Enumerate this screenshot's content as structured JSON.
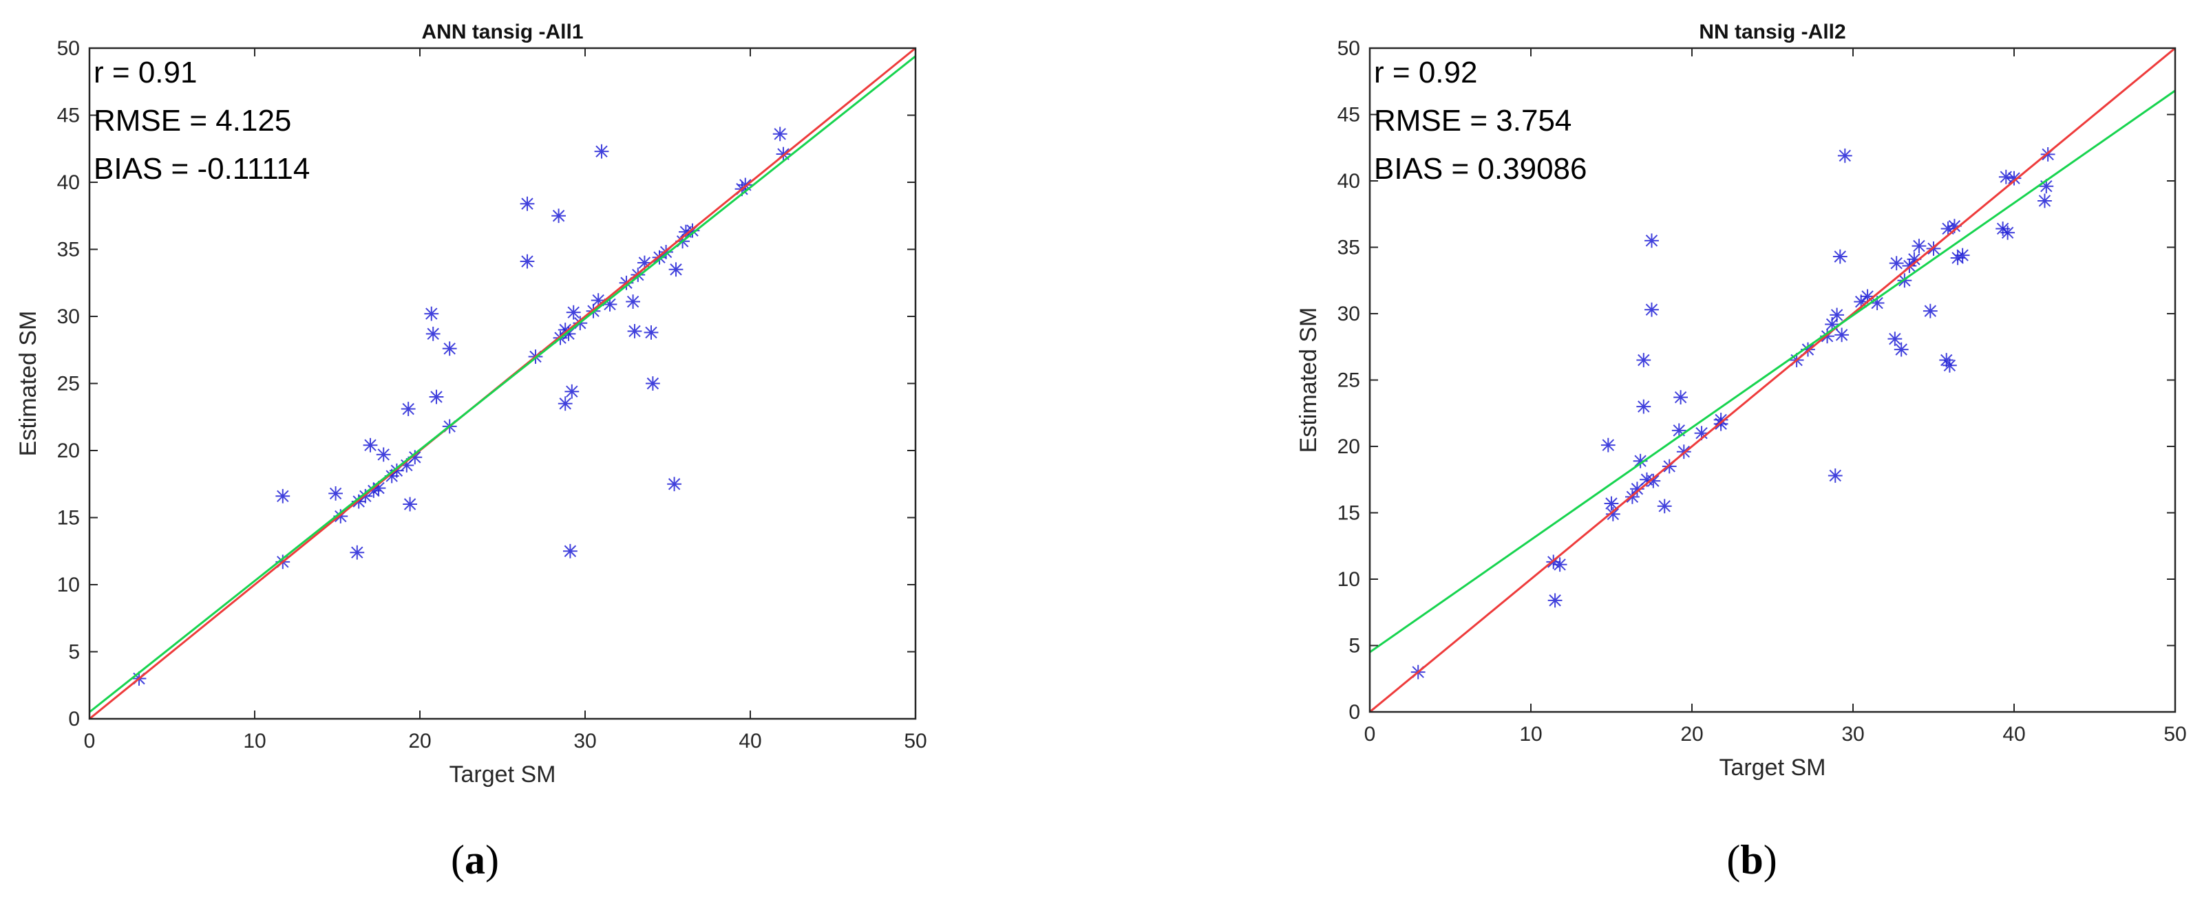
{
  "figure": {
    "panels": [
      {
        "letter": "a",
        "caption_open": "(",
        "caption_close": ")"
      },
      {
        "letter": "b",
        "caption_open": "(",
        "caption_close": ")"
      }
    ]
  },
  "colors": {
    "scatter": "#1f1fd6",
    "identity_line": "#ee3b3b",
    "fit_line": "#17d44f",
    "axes": "#262626",
    "background": "#ffffff"
  },
  "chart_data": [
    {
      "type": "scatter",
      "title": "ANN tansig -All1",
      "xlabel": "Target SM",
      "ylabel": "Estimated SM",
      "xlim": [
        0,
        50
      ],
      "ylim": [
        0,
        50
      ],
      "xticks": [
        0,
        10,
        20,
        30,
        40,
        50
      ],
      "yticks": [
        0,
        5,
        10,
        15,
        20,
        25,
        30,
        35,
        40,
        45,
        50
      ],
      "grid": false,
      "stats": [
        {
          "label": "r",
          "value": "0.91"
        },
        {
          "label": "RMSE",
          "value": "4.125"
        },
        {
          "label": "BIAS",
          "value": "-0.11114"
        }
      ],
      "lines": [
        {
          "kind": "identity",
          "from": [
            0,
            0
          ],
          "to": [
            50,
            50
          ]
        },
        {
          "kind": "fit",
          "from": [
            0,
            0.5
          ],
          "to": [
            50,
            49.4
          ]
        }
      ],
      "points": [
        [
          3,
          3
        ],
        [
          11.7,
          16.6
        ],
        [
          11.7,
          11.7
        ],
        [
          14.9,
          16.8
        ],
        [
          15.2,
          15.1
        ],
        [
          16.2,
          12.4
        ],
        [
          16.3,
          16.2
        ],
        [
          16.7,
          16.6
        ],
        [
          17,
          20.4
        ],
        [
          17.2,
          17.0
        ],
        [
          17.5,
          17.2
        ],
        [
          17.8,
          19.7
        ],
        [
          18.3,
          18.1
        ],
        [
          18.6,
          18.5
        ],
        [
          19.2,
          18.9
        ],
        [
          19.3,
          23.1
        ],
        [
          19.4,
          16.0
        ],
        [
          19.7,
          19.5
        ],
        [
          20.7,
          30.2
        ],
        [
          20.8,
          28.7
        ],
        [
          21.0,
          24.0
        ],
        [
          21.8,
          27.6
        ],
        [
          21.8,
          21.8
        ],
        [
          26.5,
          38.4
        ],
        [
          26.5,
          34.1
        ],
        [
          27.0,
          27.0
        ],
        [
          28.4,
          37.5
        ],
        [
          28.5,
          28.4
        ],
        [
          28.8,
          23.5
        ],
        [
          28.8,
          29.0
        ],
        [
          29.0,
          28.7
        ],
        [
          29.1,
          12.5
        ],
        [
          29.2,
          24.4
        ],
        [
          29.3,
          30.3
        ],
        [
          29.7,
          29.5
        ],
        [
          30.5,
          30.4
        ],
        [
          30.8,
          31.2
        ],
        [
          31.0,
          42.3
        ],
        [
          31.5,
          30.9
        ],
        [
          32.5,
          32.5
        ],
        [
          32.9,
          31.1
        ],
        [
          33.0,
          28.9
        ],
        [
          33.2,
          33.1
        ],
        [
          33.6,
          34.0
        ],
        [
          34.0,
          28.8
        ],
        [
          34.1,
          25.0
        ],
        [
          34.5,
          34.4
        ],
        [
          34.9,
          34.8
        ],
        [
          35.4,
          17.5
        ],
        [
          35.5,
          33.5
        ],
        [
          35.9,
          35.6
        ],
        [
          36.1,
          36.3
        ],
        [
          36.5,
          36.4
        ],
        [
          39.5,
          39.5
        ],
        [
          39.7,
          39.8
        ],
        [
          41.8,
          43.6
        ],
        [
          42.0,
          42.1
        ]
      ]
    },
    {
      "type": "scatter",
      "title": "NN tansig -All2",
      "xlabel": "Target SM",
      "ylabel": "Estimated SM",
      "xlim": [
        0,
        50
      ],
      "ylim": [
        0,
        50
      ],
      "xticks": [
        0,
        10,
        20,
        30,
        40,
        50
      ],
      "yticks": [
        0,
        5,
        10,
        15,
        20,
        25,
        30,
        35,
        40,
        45,
        50
      ],
      "grid": false,
      "stats": [
        {
          "label": "r",
          "value": "0.92"
        },
        {
          "label": "RMSE",
          "value": "3.754"
        },
        {
          "label": "BIAS",
          "value": "0.39086"
        }
      ],
      "lines": [
        {
          "kind": "identity",
          "from": [
            0,
            0
          ],
          "to": [
            50,
            50
          ]
        },
        {
          "kind": "fit",
          "from": [
            0,
            4.5
          ],
          "to": [
            50,
            46.8
          ]
        }
      ],
      "points": [
        [
          3,
          3
        ],
        [
          11.4,
          11.3
        ],
        [
          11.5,
          8.4
        ],
        [
          11.8,
          11.1
        ],
        [
          14.8,
          20.1
        ],
        [
          15.0,
          15.7
        ],
        [
          15.1,
          14.9
        ],
        [
          16.3,
          16.2
        ],
        [
          16.6,
          16.8
        ],
        [
          16.8,
          18.9
        ],
        [
          17.0,
          26.5
        ],
        [
          17.0,
          23.0
        ],
        [
          17.2,
          17.5
        ],
        [
          17.5,
          35.5
        ],
        [
          17.5,
          30.3
        ],
        [
          17.6,
          17.4
        ],
        [
          18.3,
          15.5
        ],
        [
          18.6,
          18.5
        ],
        [
          19.2,
          21.2
        ],
        [
          19.3,
          23.7
        ],
        [
          19.5,
          19.6
        ],
        [
          20.6,
          21.0
        ],
        [
          21.8,
          21.7
        ],
        [
          21.8,
          22.0
        ],
        [
          26.5,
          26.5
        ],
        [
          27.2,
          27.3
        ],
        [
          28.4,
          28.3
        ],
        [
          28.7,
          29.2
        ],
        [
          28.9,
          17.8
        ],
        [
          29.0,
          29.9
        ],
        [
          29.2,
          34.3
        ],
        [
          29.3,
          28.4
        ],
        [
          29.5,
          41.9
        ],
        [
          30.5,
          30.9
        ],
        [
          30.9,
          31.3
        ],
        [
          31.5,
          30.8
        ],
        [
          32.6,
          28.1
        ],
        [
          32.7,
          33.8
        ],
        [
          33.0,
          27.3
        ],
        [
          33.2,
          32.5
        ],
        [
          33.5,
          33.6
        ],
        [
          33.8,
          34.1
        ],
        [
          34.1,
          35.1
        ],
        [
          34.8,
          30.2
        ],
        [
          35.0,
          34.9
        ],
        [
          35.8,
          26.5
        ],
        [
          35.9,
          36.4
        ],
        [
          36.0,
          26.1
        ],
        [
          36.3,
          36.6
        ],
        [
          36.5,
          34.2
        ],
        [
          36.8,
          34.4
        ],
        [
          39.3,
          36.4
        ],
        [
          39.5,
          40.3
        ],
        [
          39.6,
          36.1
        ],
        [
          40.0,
          40.2
        ],
        [
          41.9,
          38.5
        ],
        [
          42.0,
          39.6
        ],
        [
          42.1,
          42.0
        ]
      ]
    }
  ]
}
